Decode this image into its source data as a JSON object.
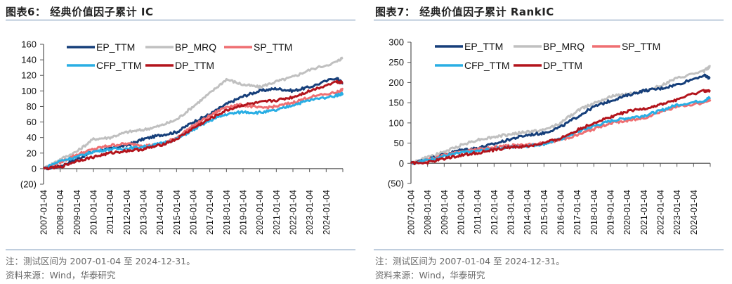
{
  "panels": [
    {
      "title": "图表6： 经典价值因子累计 IC",
      "note": "注：测试区间为 2007-01-04 至 2024-12-31。",
      "source": "资料来源：Wind，华泰研究"
    },
    {
      "title": "图表7： 经典价值因子累计 RankIC",
      "note": "注：测试区间为 2007-01-04 至 2024-12-31。",
      "source": "资料来源：Wind，华泰研究"
    }
  ],
  "chart_data": [
    {
      "type": "line",
      "title": "经典价值因子累计 IC",
      "xlabel": "",
      "ylabel": "",
      "x": [
        2007.0,
        2008.0,
        2009.0,
        2010.0,
        2011.0,
        2012.0,
        2013.0,
        2014.0,
        2015.0,
        2016.0,
        2017.0,
        2018.0,
        2019.0,
        2020.0,
        2021.0,
        2022.0,
        2023.0,
        2024.6,
        2025.0
      ],
      "xlim": [
        2007.0,
        2025.0
      ],
      "x_tick_labels": [
        "2007-01-04",
        "2008-01-04",
        "2009-01-04",
        "2010-01-04",
        "2011-01-04",
        "2012-01-04",
        "2013-01-04",
        "2014-01-04",
        "2015-01-04",
        "2016-01-04",
        "2017-01-04",
        "2018-01-04",
        "2019-01-04",
        "2020-01-04",
        "2021-01-04",
        "2022-01-04",
        "2023-01-04",
        "2024-01-04"
      ],
      "ylim": [
        -20,
        160
      ],
      "y_ticks": [
        -20,
        0,
        20,
        40,
        60,
        80,
        100,
        120,
        140,
        160
      ],
      "y_tick_labels": [
        "(20)",
        "0",
        "20",
        "40",
        "60",
        "80",
        "100",
        "120",
        "140",
        "160"
      ],
      "grid": false,
      "legend_position": "top-left",
      "series": [
        {
          "name": "EP_TTM",
          "color": "#163f7a",
          "values": [
            0,
            3,
            12,
            22,
            26,
            30,
            38,
            43,
            47,
            60,
            70,
            83,
            93,
            100,
            103,
            100,
            105,
            117,
            110
          ]
        },
        {
          "name": "BP_MRQ",
          "color": "#c0c0c0",
          "values": [
            0,
            12,
            22,
            38,
            40,
            47,
            50,
            55,
            63,
            80,
            97,
            115,
            108,
            105,
            112,
            118,
            127,
            137,
            143
          ]
        },
        {
          "name": "SP_TTM",
          "color": "#ef6f72",
          "values": [
            0,
            8,
            18,
            25,
            30,
            32,
            30,
            30,
            40,
            55,
            68,
            80,
            82,
            78,
            80,
            85,
            92,
            98,
            102
          ]
        },
        {
          "name": "CFP_TTM",
          "color": "#29aee4",
          "values": [
            0,
            10,
            15,
            22,
            25,
            26,
            28,
            32,
            38,
            50,
            62,
            70,
            73,
            72,
            75,
            82,
            88,
            94,
            97
          ]
        },
        {
          "name": "DP_TTM",
          "color": "#b3141c",
          "values": [
            0,
            2,
            10,
            15,
            20,
            23,
            25,
            30,
            38,
            52,
            64,
            75,
            82,
            85,
            88,
            92,
            100,
            112,
            111
          ]
        }
      ]
    },
    {
      "type": "line",
      "title": "经典价值因子累计 RankIC",
      "xlabel": "",
      "ylabel": "",
      "x": [
        2007.0,
        2008.0,
        2009.0,
        2010.0,
        2011.0,
        2012.0,
        2013.0,
        2014.0,
        2015.0,
        2016.0,
        2017.0,
        2018.0,
        2019.0,
        2020.0,
        2021.0,
        2022.0,
        2023.0,
        2024.6,
        2025.0
      ],
      "xlim": [
        2007.0,
        2025.0
      ],
      "x_tick_labels": [
        "2007-01-04",
        "2008-01-04",
        "2009-01-04",
        "2010-01-04",
        "2011-01-04",
        "2012-01-04",
        "2013-01-04",
        "2014-01-04",
        "2015-01-04",
        "2016-01-04",
        "2017-01-04",
        "2018-01-04",
        "2019-01-04",
        "2020-01-04",
        "2021-01-04",
        "2022-01-04",
        "2023-01-04",
        "2024-01-04"
      ],
      "ylim": [
        -50,
        300
      ],
      "y_ticks": [
        -50,
        0,
        50,
        100,
        150,
        200,
        250,
        300
      ],
      "y_tick_labels": [
        "(50)",
        "0",
        "50",
        "100",
        "150",
        "200",
        "250",
        "300"
      ],
      "grid": false,
      "legend_position": "top-left",
      "series": [
        {
          "name": "EP_TTM",
          "color": "#163f7a",
          "values": [
            0,
            10,
            22,
            33,
            38,
            48,
            60,
            70,
            75,
            90,
            115,
            140,
            155,
            168,
            180,
            185,
            195,
            218,
            210
          ]
        },
        {
          "name": "BP_MRQ",
          "color": "#c0c0c0",
          "values": [
            0,
            15,
            28,
            45,
            58,
            65,
            72,
            78,
            82,
            100,
            130,
            150,
            165,
            172,
            178,
            192,
            210,
            228,
            240
          ]
        },
        {
          "name": "SP_TTM",
          "color": "#ef6f72",
          "values": [
            0,
            8,
            20,
            28,
            35,
            40,
            44,
            45,
            50,
            58,
            70,
            85,
            100,
            105,
            112,
            128,
            140,
            150,
            158
          ]
        },
        {
          "name": "CFP_TTM",
          "color": "#29aee4",
          "values": [
            0,
            8,
            18,
            26,
            30,
            36,
            40,
            43,
            48,
            60,
            78,
            92,
            105,
            112,
            118,
            130,
            145,
            155,
            163
          ]
        },
        {
          "name": "DP_TTM",
          "color": "#b3141c",
          "values": [
            0,
            2,
            12,
            20,
            26,
            33,
            40,
            42,
            50,
            62,
            82,
            100,
            115,
            128,
            135,
            145,
            158,
            180,
            178
          ]
        }
      ]
    }
  ]
}
